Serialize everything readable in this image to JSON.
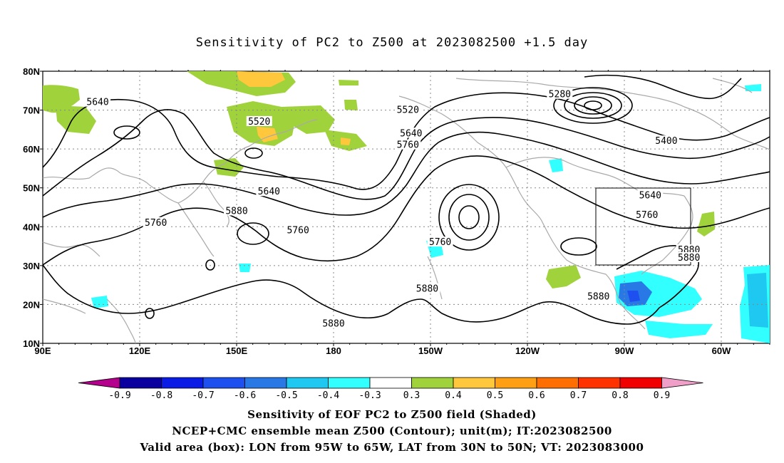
{
  "title": "Sensitivity of PC2 to Z500 at 2023082500 +1.5 day",
  "map": {
    "lat_ticks": [
      "80N",
      "70N",
      "60N",
      "50N",
      "40N",
      "30N",
      "20N",
      "10N"
    ],
    "lon_ticks": [
      "90E",
      "120E",
      "150E",
      "180",
      "150W",
      "120W",
      "90W",
      "60W"
    ],
    "valid_box": {
      "lon_from": "95W",
      "lon_to": "65W",
      "lat_from": "30N",
      "lat_to": "50N"
    },
    "contour_labels": [
      {
        "text": "5280",
        "lon": -110,
        "lat": 74
      },
      {
        "text": "5400",
        "lon": -77,
        "lat": 62
      },
      {
        "text": "5520",
        "lon": 157,
        "lat": 67
      },
      {
        "text": "5520",
        "lon": -157,
        "lat": 70
      },
      {
        "text": "5640",
        "lon": 107,
        "lat": 72
      },
      {
        "text": "5640",
        "lon": 160,
        "lat": 49
      },
      {
        "text": "5640",
        "lon": -156,
        "lat": 64
      },
      {
        "text": "5640",
        "lon": -82,
        "lat": 48
      },
      {
        "text": "5760",
        "lon": -157,
        "lat": 61
      },
      {
        "text": "5760",
        "lon": -147,
        "lat": 36
      },
      {
        "text": "5760",
        "lon": 125,
        "lat": 41
      },
      {
        "text": "5760",
        "lon": 169,
        "lat": 39
      },
      {
        "text": "5760",
        "lon": -83,
        "lat": 43
      },
      {
        "text": "5880",
        "lon": 150,
        "lat": 44
      },
      {
        "text": "5880",
        "lon": -151,
        "lat": 24
      },
      {
        "text": "5880",
        "lon": -98,
        "lat": 22
      },
      {
        "text": "5880",
        "lon": 180,
        "lat": 15
      },
      {
        "text": "5880",
        "lon": -70,
        "lat": 34
      },
      {
        "text": "5880",
        "lon": -70,
        "lat": 32
      }
    ],
    "colors": {
      "contour": "#000000",
      "coast": "#a9a9a9",
      "grid": "#888888",
      "box": "#000000"
    }
  },
  "colorbar": {
    "labels": [
      "-0.9",
      "-0.8",
      "-0.7",
      "-0.6",
      "-0.5",
      "-0.4",
      "-0.3",
      "0.3",
      "0.4",
      "0.5",
      "0.6",
      "0.7",
      "0.8",
      "0.9"
    ],
    "colors": [
      "#b4008c",
      "#0a00a0",
      "#0a1be6",
      "#1e50f0",
      "#2878e6",
      "#1ec8f0",
      "#32ffff",
      "#ffffff",
      "#a0d23c",
      "#ffc83c",
      "#ffa014",
      "#ff6e00",
      "#ff3200",
      "#f00000",
      "#f0a0c8"
    ]
  },
  "footer": {
    "line1": "Sensitivity of EOF PC2 to Z500 field (Shaded)",
    "line2": "NCEP+CMC ensemble mean Z500 (Contour); unit(m); IT:2023082500",
    "line3": "Valid area (box): LON from 95W to 65W, LAT from 30N to 50N; VT: 2023083000"
  }
}
